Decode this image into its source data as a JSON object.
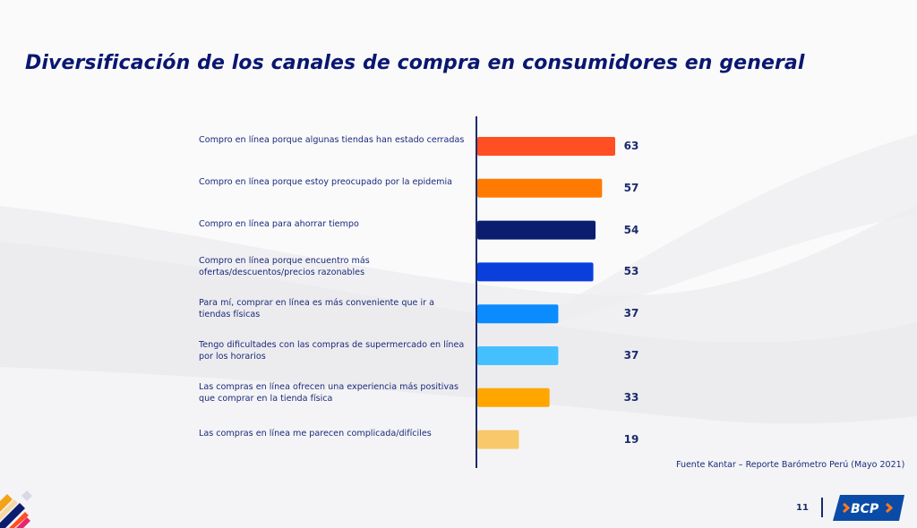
{
  "slide": {
    "title": "Diversificación de los canales de compra en consumidores en general",
    "source": "Fuente Kantar – Reporte Barómetro Perú (Mayo 2021)",
    "page_number": "11",
    "logo_text": "BCP",
    "brand_colors": {
      "primary": "#0a1770",
      "logo_bg": "#0a4ba8",
      "logo_accent": "#ff7a1a"
    }
  },
  "chart_data": {
    "type": "bar",
    "orientation": "horizontal",
    "title": "Diversificación de los canales de compra en consumidores en general",
    "xlabel": "",
    "ylabel": "",
    "xlim": [
      0,
      63
    ],
    "grid": false,
    "legend": "none",
    "categories": [
      [
        "Compro en línea porque algunas tiendas han estado cerradas"
      ],
      [
        "Compro en línea porque estoy preocupado por la epidemia"
      ],
      [
        "Compro en línea para ahorrar tiempo"
      ],
      [
        "Compro en línea porque encuentro más",
        "ofertas/descuentos/precios razonables"
      ],
      [
        "Para mí, comprar en línea es más conveniente que ir a",
        "tiendas físicas"
      ],
      [
        "Tengo dificultades con las compras de supermercado en línea",
        "por los horarios"
      ],
      [
        "Las compras en línea ofrecen una experiencia más positivas",
        "que comprar en la tienda física"
      ],
      [
        "Las compras en línea me parecen complicada/difíciles"
      ]
    ],
    "values": [
      63,
      57,
      54,
      53,
      37,
      37,
      33,
      19
    ],
    "value_labels": [
      "63",
      "57",
      "54",
      "53",
      "37",
      "37",
      "33",
      "19"
    ],
    "colors": [
      "#ff4f23",
      "#ff7a00",
      "#0c1c6e",
      "#0a3fdc",
      "#0a8cff",
      "#45c0ff",
      "#ffa600",
      "#f8c96a"
    ],
    "axis_color": "#1b2a6b"
  }
}
